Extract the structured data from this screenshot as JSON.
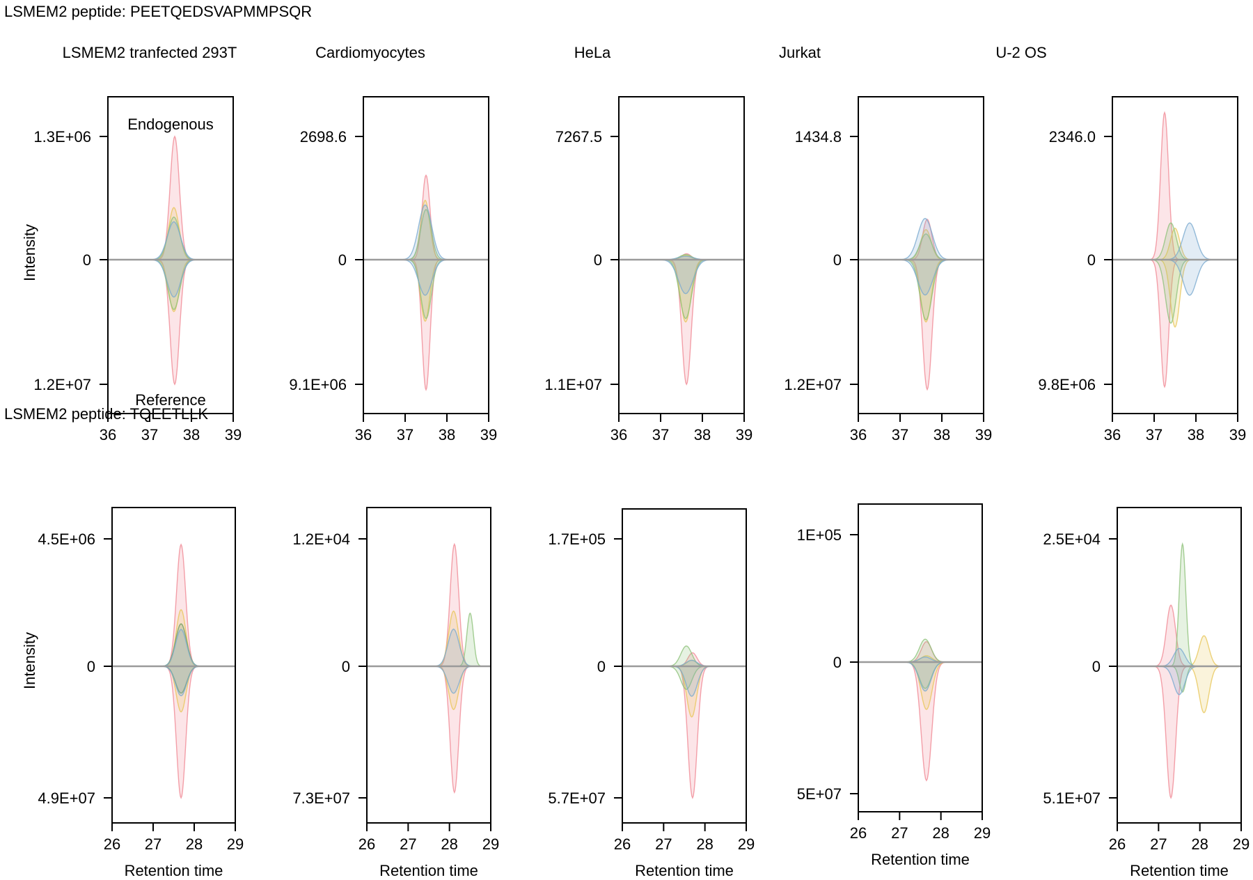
{
  "figure": {
    "sections": [
      {
        "title": "LSMEM2 peptide: PEETQEDSVAPMMPSQR"
      },
      {
        "title": "LSMEM2 peptide: TQEETLLK"
      }
    ],
    "columns": [
      {
        "title": "LSMEM2 tranfected 293T"
      },
      {
        "title": "Cardiomyocytes"
      },
      {
        "title": "HeLa"
      },
      {
        "title": "Jurkat"
      },
      {
        "title": "U-2 OS"
      }
    ],
    "ylabel": "Intensity",
    "xlabel": "Retention time",
    "annotations": {
      "top": "Endogenous",
      "bottom": "Reference"
    }
  },
  "chart_data": [
    {
      "type": "area",
      "row": 0,
      "col": 0,
      "title": "LSMEM2 tranfected 293T",
      "peptide": "PEETQEDSVAPMMPSQR",
      "xlim": [
        36,
        39
      ],
      "xticks": [
        36,
        37,
        38,
        39
      ],
      "ytick_labels": {
        "top": "1.3E+06",
        "zero": "0",
        "bottom": "1.2E+07"
      },
      "yrange_endogenous": [
        0,
        1300000
      ],
      "yrange_reference": [
        0,
        12000000
      ],
      "annotations": [
        "Endogenous",
        "Reference"
      ],
      "series": [
        {
          "name": "red",
          "color": "#f08a95",
          "apex_rt": 37.6,
          "endogenous_peak": 1300000,
          "reference_peak": 12000000,
          "width": 0.14
        },
        {
          "name": "yellow",
          "color": "#e8c75a",
          "apex_rt": 37.58,
          "endogenous_peak": 550000,
          "reference_peak": 5000000,
          "width": 0.16
        },
        {
          "name": "green",
          "color": "#8fc27a",
          "apex_rt": 37.58,
          "endogenous_peak": 450000,
          "reference_peak": 4800000,
          "width": 0.18
        },
        {
          "name": "blue",
          "color": "#7aaad0",
          "apex_rt": 37.58,
          "endogenous_peak": 400000,
          "reference_peak": 3600000,
          "width": 0.2
        }
      ]
    },
    {
      "type": "area",
      "row": 0,
      "col": 1,
      "title": "Cardiomyocytes",
      "peptide": "PEETQEDSVAPMMPSQR",
      "xlim": [
        36,
        39
      ],
      "xticks": [
        36,
        37,
        38,
        39
      ],
      "ytick_labels": {
        "top": "2698.6",
        "zero": "0",
        "bottom": "9.1E+06"
      },
      "yrange_endogenous": [
        0,
        2698.6
      ],
      "yrange_reference": [
        0,
        9100000
      ],
      "series": [
        {
          "name": "red",
          "color": "#f08a95",
          "apex_rt": 37.5,
          "endogenous_peak": 1850,
          "reference_peak": 9500000,
          "width": 0.12
        },
        {
          "name": "yellow",
          "color": "#e8c75a",
          "apex_rt": 37.48,
          "endogenous_peak": 1300,
          "reference_peak": 4500000,
          "width": 0.14
        },
        {
          "name": "green",
          "color": "#8fc27a",
          "apex_rt": 37.5,
          "endogenous_peak": 1100,
          "reference_peak": 4300000,
          "width": 0.16
        },
        {
          "name": "blue",
          "color": "#7aaad0",
          "apex_rt": 37.48,
          "endogenous_peak": 1200,
          "reference_peak": 2600000,
          "width": 0.2
        }
      ]
    },
    {
      "type": "area",
      "row": 0,
      "col": 2,
      "title": "HeLa",
      "peptide": "PEETQEDSVAPMMPSQR",
      "xlim": [
        36,
        39
      ],
      "xticks": [
        36,
        37,
        38,
        39
      ],
      "ytick_labels": {
        "top": "7267.5",
        "zero": "0",
        "bottom": "1.1E+07"
      },
      "yrange_endogenous": [
        0,
        7267.5
      ],
      "yrange_reference": [
        0,
        11000000
      ],
      "series": [
        {
          "name": "red",
          "color": "#f08a95",
          "apex_rt": 37.62,
          "endogenous_peak": 350,
          "reference_peak": 11000000,
          "width": 0.14
        },
        {
          "name": "yellow",
          "color": "#e8c75a",
          "apex_rt": 37.6,
          "endogenous_peak": 250,
          "reference_peak": 5500000,
          "width": 0.16
        },
        {
          "name": "green",
          "color": "#8fc27a",
          "apex_rt": 37.6,
          "endogenous_peak": 300,
          "reference_peak": 5200000,
          "width": 0.18
        },
        {
          "name": "blue",
          "color": "#7aaad0",
          "apex_rt": 37.6,
          "endogenous_peak": 200,
          "reference_peak": 3000000,
          "width": 0.22
        }
      ]
    },
    {
      "type": "area",
      "row": 0,
      "col": 3,
      "title": "Jurkat",
      "peptide": "PEETQEDSVAPMMPSQR",
      "xlim": [
        36,
        39
      ],
      "xticks": [
        36,
        37,
        38,
        39
      ],
      "ytick_labels": {
        "top": "1434.8",
        "zero": "0",
        "bottom": "1.2E+07"
      },
      "yrange_endogenous": [
        0,
        1434.8
      ],
      "yrange_reference": [
        0,
        12000000
      ],
      "series": [
        {
          "name": "red",
          "color": "#f08a95",
          "apex_rt": 37.65,
          "endogenous_peak": 470,
          "reference_peak": 12500000,
          "width": 0.14
        },
        {
          "name": "yellow",
          "color": "#e8c75a",
          "apex_rt": 37.62,
          "endogenous_peak": 350,
          "reference_peak": 6000000,
          "width": 0.16
        },
        {
          "name": "green",
          "color": "#8fc27a",
          "apex_rt": 37.62,
          "endogenous_peak": 300,
          "reference_peak": 5800000,
          "width": 0.18
        },
        {
          "name": "blue",
          "color": "#7aaad0",
          "apex_rt": 37.6,
          "endogenous_peak": 480,
          "reference_peak": 3400000,
          "width": 0.22
        }
      ]
    },
    {
      "type": "area",
      "row": 0,
      "col": 4,
      "title": "U-2 OS",
      "peptide": "PEETQEDSVAPMMPSQR",
      "xlim": [
        36,
        39
      ],
      "xticks": [
        36,
        37,
        38,
        39
      ],
      "ytick_labels": {
        "top": "2346.0",
        "zero": "0",
        "bottom": "9.8E+06"
      },
      "yrange_endogenous": [
        0,
        2346.0
      ],
      "yrange_reference": [
        0,
        9800000
      ],
      "series": [
        {
          "name": "red",
          "color": "#f08a95",
          "apex_rt": 37.25,
          "endogenous_peak": 2800,
          "reference_peak": 10000000,
          "width": 0.12
        },
        {
          "name": "yellow",
          "color": "#e8c75a",
          "apex_rt": 37.5,
          "endogenous_peak": 600,
          "reference_peak": 5300000,
          "width": 0.14
        },
        {
          "name": "green",
          "color": "#8fc27a",
          "apex_rt": 37.4,
          "endogenous_peak": 700,
          "reference_peak": 5000000,
          "width": 0.16
        },
        {
          "name": "blue",
          "color": "#7aaad0",
          "apex_rt": 37.85,
          "endogenous_peak": 700,
          "reference_peak": 2800000,
          "width": 0.2
        }
      ]
    },
    {
      "type": "area",
      "row": 1,
      "col": 0,
      "title": "LSMEM2 tranfected 293T",
      "peptide": "TQEETLLK",
      "xlim": [
        26,
        29
      ],
      "xticks": [
        26,
        27,
        28,
        29
      ],
      "ytick_labels": {
        "top": "4.5E+06",
        "zero": "0",
        "bottom": "4.9E+07"
      },
      "yrange_endogenous": [
        0,
        4500000
      ],
      "yrange_reference": [
        0,
        49000000
      ],
      "series": [
        {
          "name": "red",
          "color": "#f08a95",
          "apex_rt": 27.68,
          "endogenous_peak": 4300000,
          "reference_peak": 49000000,
          "width": 0.14
        },
        {
          "name": "yellow",
          "color": "#e8c75a",
          "apex_rt": 27.68,
          "endogenous_peak": 2000000,
          "reference_peak": 17000000,
          "width": 0.15
        },
        {
          "name": "green",
          "color": "#6f9e5c",
          "apex_rt": 27.68,
          "endogenous_peak": 1500000,
          "reference_peak": 10000000,
          "width": 0.17
        },
        {
          "name": "blue",
          "color": "#7aaad0",
          "apex_rt": 27.68,
          "endogenous_peak": 1300000,
          "reference_peak": 11000000,
          "width": 0.17
        }
      ]
    },
    {
      "type": "area",
      "row": 1,
      "col": 1,
      "title": "Cardiomyocytes",
      "peptide": "TQEETLLK",
      "xlim": [
        26,
        29
      ],
      "xticks": [
        26,
        27,
        28,
        29
      ],
      "ytick_labels": {
        "top": "1.2E+04",
        "zero": "0",
        "bottom": "7.3E+07"
      },
      "yrange_endogenous": [
        0,
        12000
      ],
      "yrange_reference": [
        0,
        73000000
      ],
      "series": [
        {
          "name": "red",
          "color": "#f08a95",
          "apex_rt": 28.12,
          "endogenous_peak": 11500,
          "reference_peak": 70000000,
          "width": 0.13
        },
        {
          "name": "yellow",
          "color": "#e8c75a",
          "apex_rt": 28.1,
          "endogenous_peak": 5200,
          "reference_peak": 24000000,
          "width": 0.15
        },
        {
          "name": "green",
          "color": "#8fc27a",
          "apex_rt": 28.5,
          "endogenous_peak": 5000,
          "reference_peak": 0,
          "width": 0.1
        },
        {
          "name": "blue",
          "color": "#7aaad0",
          "apex_rt": 28.1,
          "endogenous_peak": 3500,
          "reference_peak": 15000000,
          "width": 0.17
        }
      ]
    },
    {
      "type": "area",
      "row": 1,
      "col": 2,
      "title": "HeLa",
      "peptide": "TQEETLLK",
      "xlim": [
        26,
        29
      ],
      "xticks": [
        26,
        27,
        28,
        29
      ],
      "ytick_labels": {
        "top": "1.7E+05",
        "zero": "0",
        "bottom": "5.7E+07"
      },
      "yrange_endogenous": [
        0,
        170000
      ],
      "yrange_reference": [
        0,
        57000000
      ],
      "series": [
        {
          "name": "red",
          "color": "#f08a95",
          "apex_rt": 27.7,
          "endogenous_peak": 18000,
          "reference_peak": 57000000,
          "width": 0.14
        },
        {
          "name": "yellow",
          "color": "#e8c75a",
          "apex_rt": 27.68,
          "endogenous_peak": 8000,
          "reference_peak": 22000000,
          "width": 0.15
        },
        {
          "name": "green",
          "color": "#8fc27a",
          "apex_rt": 27.55,
          "endogenous_peak": 27000,
          "reference_peak": 10000000,
          "width": 0.17
        },
        {
          "name": "blue",
          "color": "#7aaad0",
          "apex_rt": 27.68,
          "endogenous_peak": 8000,
          "reference_peak": 13000000,
          "width": 0.17
        }
      ]
    },
    {
      "type": "area",
      "row": 1,
      "col": 3,
      "title": "Jurkat",
      "peptide": "TQEETLLK",
      "xlim": [
        26,
        29
      ],
      "xticks": [
        26,
        27,
        28,
        29
      ],
      "ytick_labels": {
        "top": "1E+05",
        "zero": "0",
        "bottom": "5E+07"
      },
      "yrange_endogenous": [
        0,
        100000
      ],
      "yrange_reference": [
        0,
        50000000
      ],
      "series": [
        {
          "name": "red",
          "color": "#f08a95",
          "apex_rt": 27.65,
          "endogenous_peak": 16000,
          "reference_peak": 45000000,
          "width": 0.16
        },
        {
          "name": "yellow",
          "color": "#e8c75a",
          "apex_rt": 27.65,
          "endogenous_peak": 5000,
          "reference_peak": 18000000,
          "width": 0.17
        },
        {
          "name": "green",
          "color": "#8fc27a",
          "apex_rt": 27.62,
          "endogenous_peak": 18000,
          "reference_peak": 10000000,
          "width": 0.18
        },
        {
          "name": "blue",
          "color": "#7aaad0",
          "apex_rt": 27.62,
          "endogenous_peak": 4000,
          "reference_peak": 11000000,
          "width": 0.18
        }
      ]
    },
    {
      "type": "area",
      "row": 1,
      "col": 4,
      "title": "U-2 OS",
      "peptide": "TQEETLLK",
      "xlim": [
        26,
        29
      ],
      "xticks": [
        26,
        27,
        28,
        29
      ],
      "ytick_labels": {
        "top": "2.5E+04",
        "zero": "0",
        "bottom": "5.1E+07"
      },
      "yrange_endogenous": [
        0,
        25000
      ],
      "yrange_reference": [
        0,
        51000000
      ],
      "series": [
        {
          "name": "red",
          "color": "#f08a95",
          "apex_rt": 27.3,
          "endogenous_peak": 12000,
          "reference_peak": 51000000,
          "width": 0.14
        },
        {
          "name": "yellow",
          "color": "#e8c75a",
          "apex_rt": 28.1,
          "endogenous_peak": 6000,
          "reference_peak": 18000000,
          "width": 0.15
        },
        {
          "name": "green",
          "color": "#8fc27a",
          "apex_rt": 27.58,
          "endogenous_peak": 24000,
          "reference_peak": 10000000,
          "width": 0.1
        },
        {
          "name": "blue",
          "color": "#7aaad0",
          "apex_rt": 27.5,
          "endogenous_peak": 3500,
          "reference_peak": 11000000,
          "width": 0.17
        }
      ]
    }
  ]
}
